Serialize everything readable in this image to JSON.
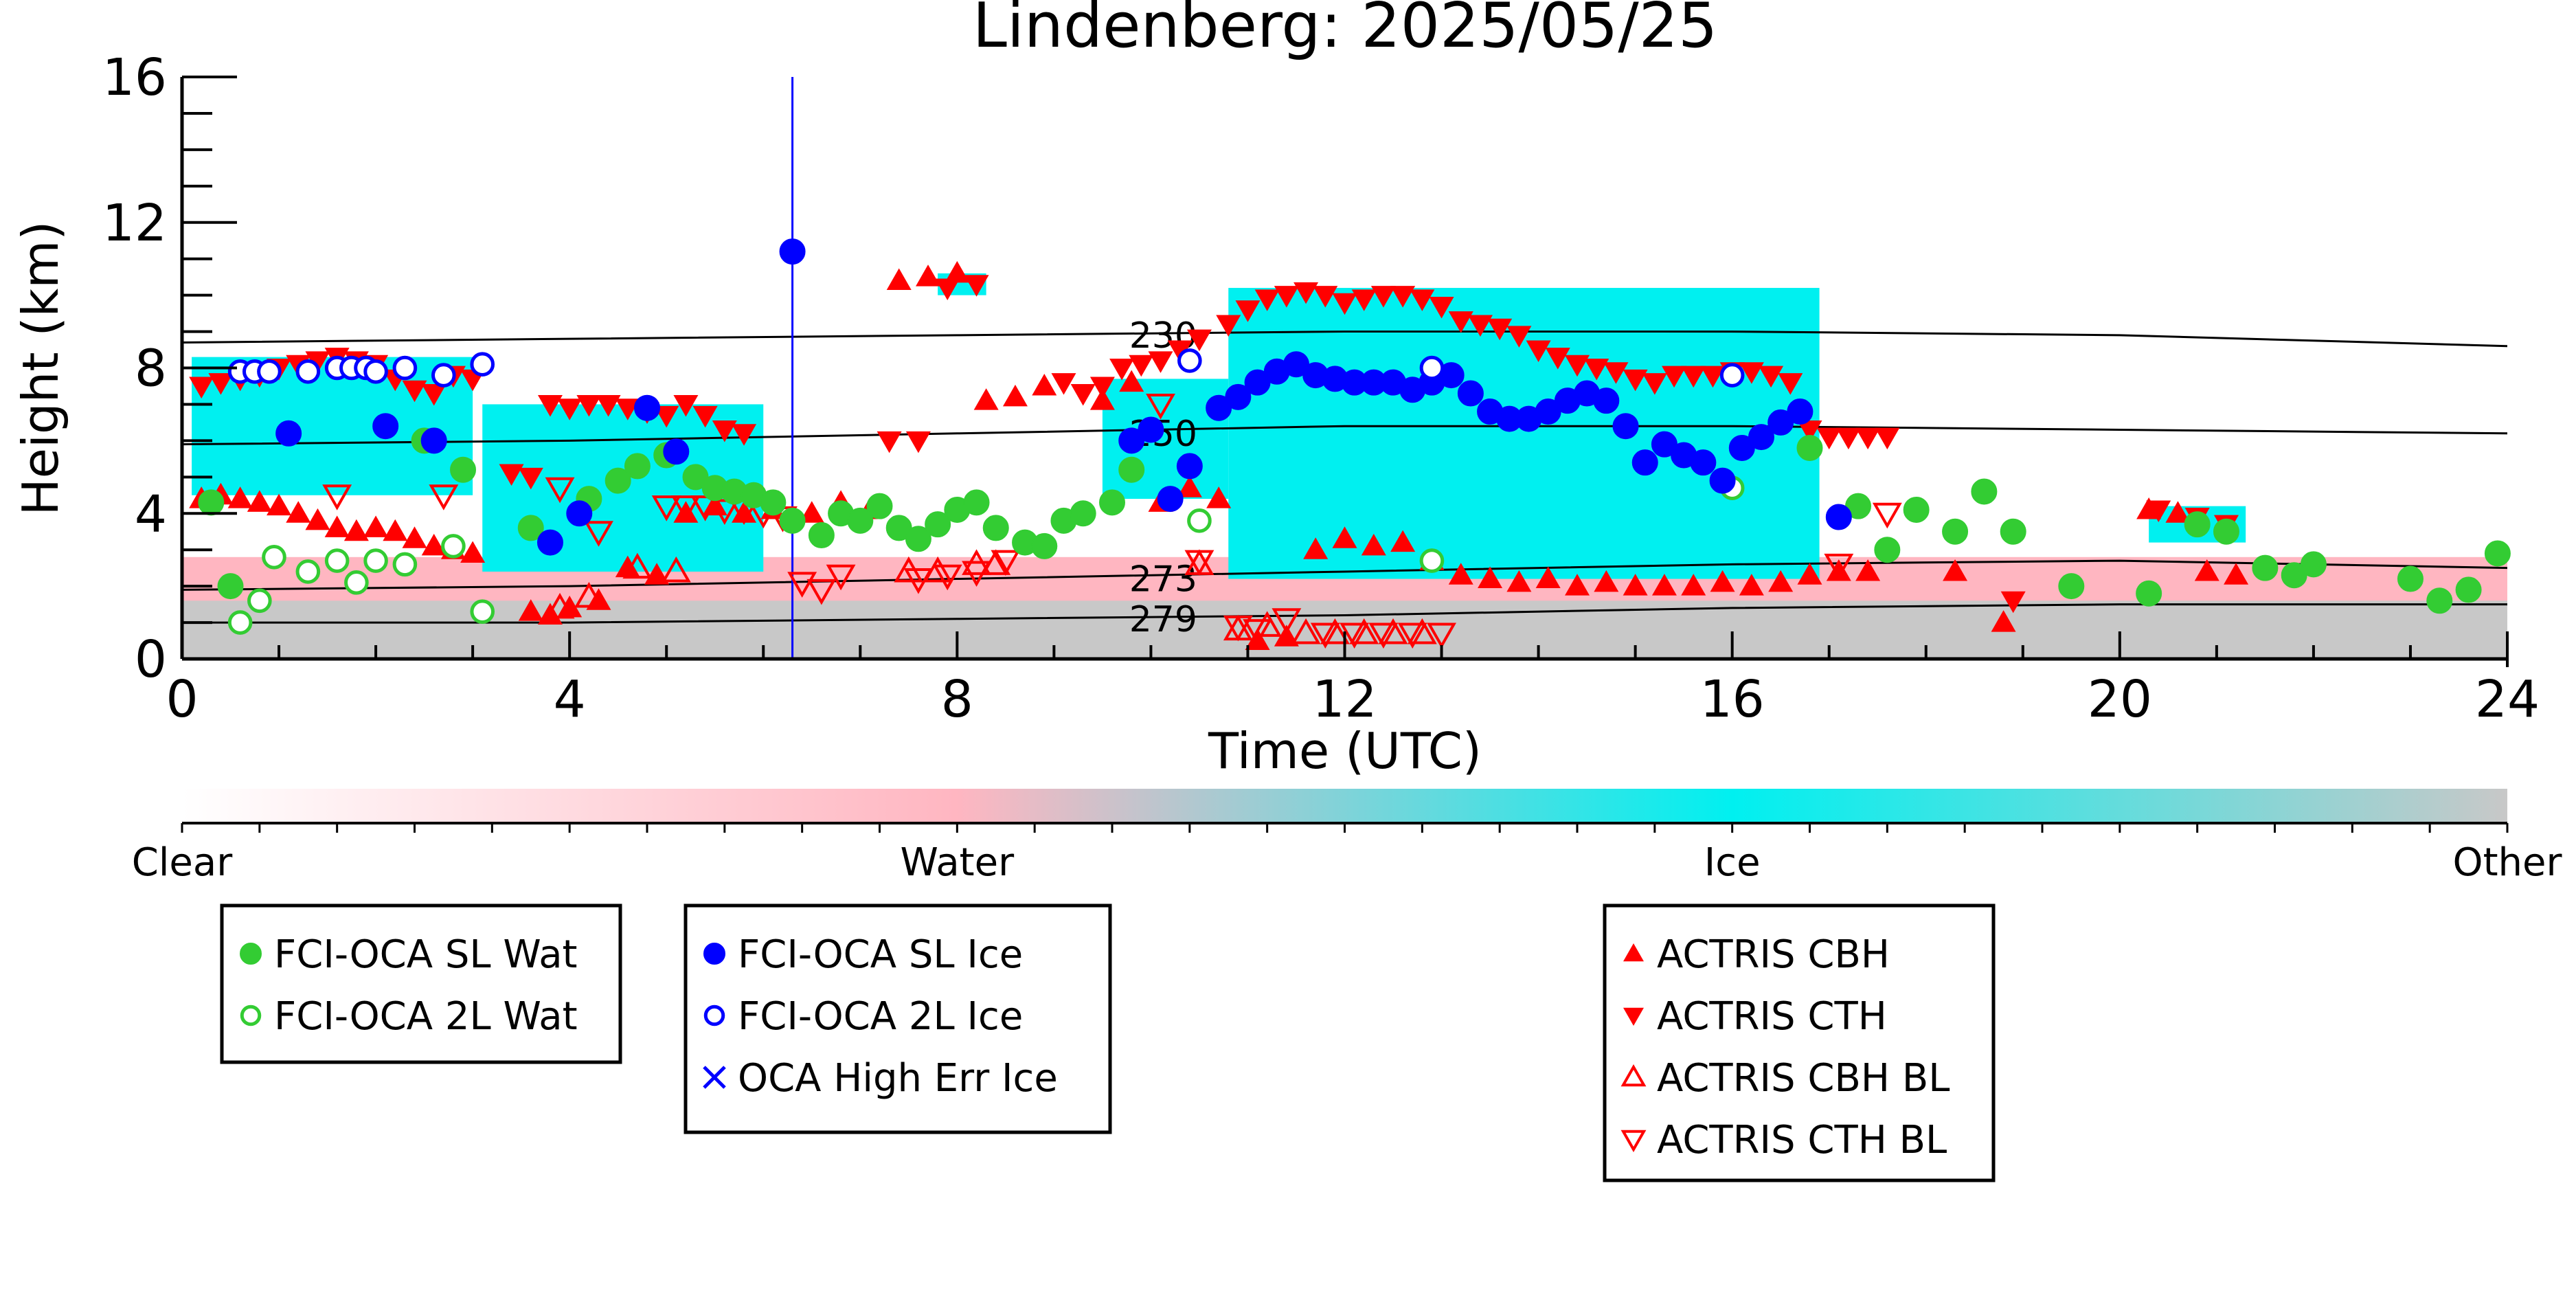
{
  "chart_data": {
    "type": "scatter",
    "title": "Lindenberg: 2025/05/25",
    "xlabel": "Time (UTC)",
    "ylabel": "Height (km)",
    "xlim": [
      0,
      24
    ],
    "ylim": [
      0,
      16
    ],
    "x_ticks": [
      0,
      4,
      8,
      12,
      16,
      20,
      24
    ],
    "y_ticks": [
      0,
      4,
      8,
      12,
      16
    ],
    "grid": false,
    "background_classification": {
      "colorbar_labels": [
        "Clear",
        "Water",
        "Ice",
        "Other"
      ],
      "colors": {
        "clear": "#ffffff",
        "water": "#ffb6c1",
        "ice": "#00f0f0",
        "other": "#c8c8c8"
      },
      "ice_regions": [
        {
          "x_start": 0.1,
          "x_end": 3.0,
          "y_bottom": 4.5,
          "y_top": 8.3
        },
        {
          "x_start": 3.1,
          "x_end": 6.0,
          "y_bottom": 2.4,
          "y_top": 7.0
        },
        {
          "x_start": 7.8,
          "x_end": 8.3,
          "y_bottom": 10.0,
          "y_top": 10.6
        },
        {
          "x_start": 9.5,
          "x_end": 10.8,
          "y_bottom": 4.4,
          "y_top": 7.7
        },
        {
          "x_start": 10.8,
          "x_end": 16.9,
          "y_bottom": 2.2,
          "y_top": 10.2
        },
        {
          "x_start": 20.3,
          "x_end": 21.3,
          "y_bottom": 3.2,
          "y_top": 4.2
        }
      ],
      "water_regions": [
        {
          "x_start": 0.0,
          "x_end": 24.0,
          "y_bottom": 1.5,
          "y_top": 2.8
        },
        {
          "x_start": 10.0,
          "x_end": 14.0,
          "y_bottom": 0.3,
          "y_top": 1.5
        }
      ],
      "other_regions": [
        {
          "x_start": 0.0,
          "x_end": 24.0,
          "y_bottom": 0.0,
          "y_top": 1.6
        }
      ]
    },
    "isotherms": [
      {
        "label": "230",
        "x": [
          0,
          4,
          8,
          12,
          16,
          20,
          24
        ],
        "y": [
          8.7,
          8.8,
          8.9,
          9.0,
          9.0,
          8.9,
          8.6
        ]
      },
      {
        "label": "250",
        "x": [
          0,
          4,
          8,
          12,
          16,
          20,
          24
        ],
        "y": [
          5.9,
          6.0,
          6.2,
          6.4,
          6.4,
          6.3,
          6.2
        ]
      },
      {
        "label": "273",
        "x": [
          0,
          4,
          8,
          12,
          16,
          20,
          24
        ],
        "y": [
          1.9,
          2.0,
          2.2,
          2.4,
          2.6,
          2.7,
          2.5
        ]
      },
      {
        "label": "279",
        "x": [
          0,
          4,
          8,
          12,
          16,
          20,
          24
        ],
        "y": [
          1.0,
          1.0,
          1.1,
          1.2,
          1.4,
          1.5,
          1.5
        ]
      }
    ],
    "vertical_line": {
      "x": 6.3,
      "color": "#0000ff"
    },
    "series": [
      {
        "name": "FCI-OCA SL Wat",
        "marker": "filled-circle",
        "color": "#33cc33",
        "x": [
          0.3,
          0.5,
          2.5,
          2.9,
          3.6,
          4.2,
          4.5,
          4.7,
          5.0,
          5.3,
          5.5,
          5.7,
          5.9,
          6.1,
          6.3,
          6.6,
          6.8,
          7.0,
          7.2,
          7.4,
          7.6,
          7.8,
          8.0,
          8.2,
          8.4,
          8.7,
          8.9,
          9.1,
          9.3,
          9.6,
          9.8,
          16.8,
          17.3,
          17.6,
          17.9,
          18.3,
          18.6,
          18.9,
          19.5,
          20.3,
          20.8,
          21.1,
          21.5,
          21.8,
          22.0,
          23.0,
          23.3,
          23.6,
          23.9
        ],
        "y": [
          4.3,
          2.0,
          6.0,
          5.2,
          3.6,
          4.4,
          4.9,
          5.3,
          5.6,
          5.0,
          4.7,
          4.6,
          4.5,
          4.3,
          3.8,
          3.4,
          4.0,
          3.8,
          4.2,
          3.6,
          3.3,
          3.7,
          4.1,
          4.3,
          3.6,
          3.2,
          3.1,
          3.8,
          4.0,
          4.3,
          5.2,
          5.8,
          4.2,
          3.0,
          4.1,
          3.5,
          4.6,
          3.5,
          2.0,
          1.8,
          3.7,
          3.5,
          2.5,
          2.3,
          2.6,
          2.2,
          1.6,
          1.9,
          2.9
        ]
      },
      {
        "name": "FCI-OCA 2L Wat",
        "marker": "open-circle",
        "color": "#33cc33",
        "x": [
          0.6,
          0.8,
          0.95,
          1.3,
          1.6,
          1.8,
          2.0,
          2.3,
          2.8,
          3.1,
          10.5,
          12.9,
          16.0
        ],
        "y": [
          1.0,
          1.6,
          2.8,
          2.4,
          2.7,
          2.1,
          2.7,
          2.6,
          3.1,
          1.3,
          3.8,
          2.7,
          4.7
        ]
      },
      {
        "name": "FCI-OCA SL Ice",
        "marker": "filled-circle",
        "color": "#0000ff",
        "x": [
          1.1,
          2.1,
          2.6,
          3.8,
          4.1,
          4.8,
          5.1,
          6.3,
          9.8,
          10.0,
          10.2,
          10.4,
          10.7,
          10.9,
          11.1,
          11.3,
          11.5,
          11.7,
          11.9,
          12.1,
          12.3,
          12.5,
          12.7,
          12.9,
          13.1,
          13.3,
          13.5,
          13.7,
          13.9,
          14.1,
          14.3,
          14.5,
          14.7,
          14.9,
          15.1,
          15.3,
          15.5,
          15.7,
          15.9,
          16.1,
          16.3,
          16.5,
          16.7,
          17.1
        ],
        "y": [
          6.2,
          6.4,
          6.0,
          3.2,
          4.0,
          6.9,
          5.7,
          11.2,
          6.0,
          6.3,
          4.4,
          5.3,
          6.9,
          7.2,
          7.6,
          7.9,
          8.1,
          7.8,
          7.7,
          7.6,
          7.6,
          7.6,
          7.4,
          7.6,
          7.8,
          7.3,
          6.8,
          6.6,
          6.6,
          6.8,
          7.1,
          7.3,
          7.1,
          6.4,
          5.4,
          5.9,
          5.6,
          5.4,
          4.9,
          5.8,
          6.1,
          6.5,
          6.8,
          3.9
        ]
      },
      {
        "name": "FCI-OCA 2L Ice",
        "marker": "open-circle",
        "color": "#0000ff",
        "x": [
          0.6,
          0.75,
          0.9,
          1.3,
          1.6,
          1.75,
          1.9,
          2.0,
          2.3,
          2.7,
          3.1,
          10.4,
          12.9,
          16.0
        ],
        "y": [
          7.9,
          7.9,
          7.9,
          7.9,
          8.0,
          8.0,
          8.0,
          7.9,
          8.0,
          7.8,
          8.1,
          8.2,
          8.0,
          7.8
        ]
      },
      {
        "name": "OCA High Err Ice",
        "marker": "x",
        "color": "#0000ff",
        "x": [],
        "y": []
      },
      {
        "name": "ACTRIS CBH",
        "marker": "triangle-up",
        "color": "#ff0000",
        "x": [
          0.2,
          0.4,
          0.6,
          0.8,
          1.0,
          1.2,
          1.4,
          1.6,
          1.8,
          2.0,
          2.2,
          2.4,
          2.6,
          2.8,
          3.0,
          3.6,
          3.8,
          4.0,
          4.3,
          4.6,
          4.9,
          5.2,
          5.5,
          5.8,
          6.1,
          6.5,
          6.8,
          7.1,
          7.4,
          7.7,
          8.0,
          8.3,
          8.6,
          8.9,
          9.5,
          9.8,
          10.1,
          10.4,
          10.7,
          11.1,
          11.4,
          11.7,
          12.0,
          12.3,
          12.6,
          12.9,
          13.2,
          13.5,
          13.8,
          14.1,
          14.4,
          14.7,
          15.0,
          15.3,
          15.6,
          15.9,
          16.2,
          16.5,
          16.8,
          17.1,
          17.4,
          18.3,
          18.8,
          20.3,
          20.6,
          20.9,
          21.2
        ],
        "y": [
          4.4,
          4.5,
          4.4,
          4.3,
          4.2,
          4.0,
          3.8,
          3.6,
          3.5,
          3.6,
          3.5,
          3.3,
          3.1,
          3.0,
          2.9,
          1.3,
          1.2,
          1.4,
          1.6,
          2.5,
          2.3,
          4.0,
          4.2,
          4.0,
          4.1,
          4.0,
          4.3,
          4.1,
          10.4,
          10.5,
          10.6,
          7.1,
          7.2,
          7.5,
          7.1,
          7.6,
          4.3,
          4.7,
          4.4,
          0.5,
          0.6,
          3.0,
          3.3,
          3.1,
          3.2,
          2.7,
          2.3,
          2.2,
          2.1,
          2.2,
          2.0,
          2.1,
          2.0,
          2.0,
          2.0,
          2.1,
          2.0,
          2.1,
          2.3,
          2.4,
          2.4,
          2.4,
          1.0,
          4.1,
          4.0,
          2.4,
          2.3
        ]
      },
      {
        "name": "ACTRIS CTH",
        "marker": "triangle-down",
        "color": "#ff0000",
        "x": [
          0.2,
          0.4,
          0.6,
          0.8,
          1.0,
          1.2,
          1.4,
          1.6,
          1.8,
          2.0,
          2.2,
          2.4,
          2.6,
          2.8,
          3.0,
          3.4,
          3.6,
          3.8,
          4.0,
          4.2,
          4.4,
          4.6,
          4.8,
          5.0,
          5.2,
          5.4,
          5.6,
          5.8,
          7.3,
          7.6,
          7.9,
          8.2,
          9.1,
          9.3,
          9.5,
          9.7,
          9.9,
          10.1,
          10.3,
          10.5,
          10.8,
          11.0,
          11.2,
          11.4,
          11.6,
          11.8,
          12.0,
          12.2,
          12.4,
          12.6,
          12.8,
          13.0,
          13.2,
          13.4,
          13.6,
          13.8,
          14.0,
          14.2,
          14.4,
          14.6,
          14.8,
          15.0,
          15.2,
          15.4,
          15.6,
          15.8,
          16.0,
          16.2,
          16.4,
          16.6,
          16.8,
          17.0,
          17.2,
          17.4,
          17.6,
          18.9,
          20.4,
          20.8,
          21.1
        ],
        "y": [
          7.5,
          7.6,
          7.7,
          7.8,
          8.0,
          8.1,
          8.2,
          8.3,
          8.2,
          8.1,
          7.7,
          7.4,
          7.3,
          7.8,
          7.7,
          5.1,
          5.0,
          7.0,
          6.9,
          7.0,
          7.0,
          6.9,
          6.8,
          6.7,
          7.0,
          6.7,
          6.3,
          6.2,
          6.0,
          6.0,
          10.2,
          10.3,
          7.6,
          7.3,
          7.5,
          8.0,
          8.1,
          8.2,
          8.5,
          8.8,
          9.2,
          9.6,
          9.9,
          10.0,
          10.1,
          10.0,
          9.8,
          9.9,
          10.0,
          10.0,
          9.9,
          9.7,
          9.3,
          9.2,
          9.1,
          8.9,
          8.5,
          8.3,
          8.1,
          8.0,
          7.9,
          7.7,
          7.6,
          7.8,
          7.8,
          7.8,
          7.9,
          7.9,
          7.8,
          7.6,
          6.3,
          6.1,
          6.1,
          6.1,
          6.1,
          1.6,
          4.1,
          3.9,
          3.7
        ]
      },
      {
        "name": "ACTRIS CBH BL",
        "marker": "open-triangle-up",
        "color": "#ff0000",
        "x": [
          3.9,
          4.2,
          4.7,
          5.1,
          7.5,
          7.8,
          8.2,
          8.4,
          10.5,
          10.9,
          11.2,
          11.6,
          11.9,
          12.2,
          12.5,
          12.8
        ],
        "y": [
          1.4,
          1.7,
          2.5,
          2.4,
          2.4,
          2.4,
          2.6,
          2.6,
          2.6,
          0.8,
          0.9,
          0.7,
          0.7,
          0.7,
          0.7,
          0.7
        ]
      },
      {
        "name": "ACTRIS CTH BL",
        "marker": "open-triangle-down",
        "color": "#ff0000",
        "x": [
          1.6,
          2.7,
          3.9,
          4.3,
          5.0,
          5.2,
          5.4,
          5.6,
          5.8,
          6.0,
          6.2,
          6.4,
          6.6,
          6.8,
          7.6,
          7.9,
          8.2,
          8.5,
          10.1,
          10.5,
          10.9,
          11.1,
          11.4,
          11.8,
          12.1,
          12.4,
          12.7,
          13.0,
          17.1,
          17.6
        ],
        "y": [
          4.5,
          4.5,
          4.7,
          3.5,
          4.2,
          4.2,
          4.2,
          4.1,
          4.1,
          4.0,
          3.9,
          2.1,
          1.9,
          2.3,
          2.2,
          2.3,
          2.4,
          2.7,
          7.0,
          2.7,
          0.9,
          0.8,
          1.1,
          0.7,
          0.7,
          0.7,
          0.7,
          0.7,
          2.6,
          4.0
        ]
      }
    ],
    "legends": [
      {
        "entries": [
          "FCI-OCA SL Wat",
          "FCI-OCA 2L Wat"
        ]
      },
      {
        "entries": [
          "FCI-OCA SL Ice",
          "FCI-OCA 2L Ice",
          "OCA High Err Ice"
        ]
      },
      {
        "entries": [
          "ACTRIS CBH",
          "ACTRIS CTH",
          "ACTRIS CBH BL",
          "ACTRIS CTH BL"
        ]
      }
    ],
    "legend_placement": "below"
  }
}
